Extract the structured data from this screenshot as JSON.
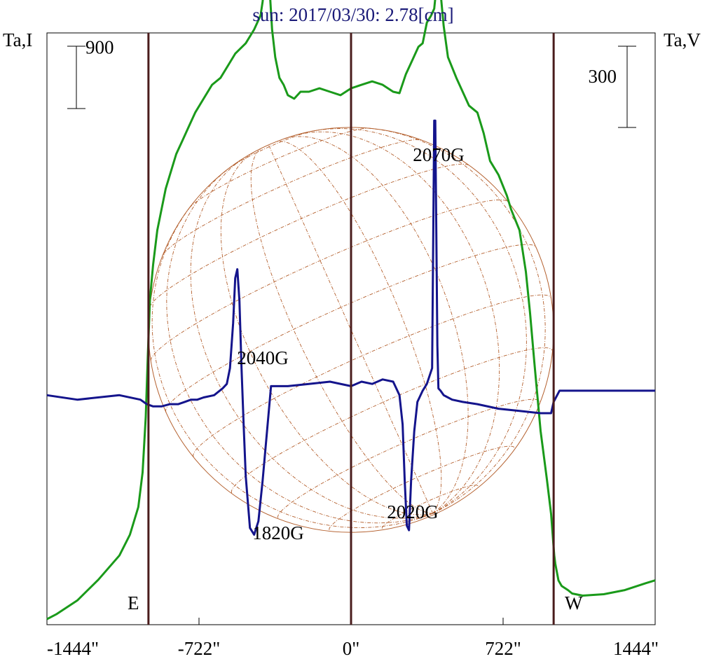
{
  "chart_data": {
    "type": "line",
    "title": "sun: 2017/03/30: 2.78[cm]",
    "y_left_label": "Ta,I",
    "y_right_label": "Ta,V",
    "x_ticks": [
      -1444,
      -722,
      0,
      722,
      1444
    ],
    "x_tick_labels": [
      "-1444\"",
      "-722\"",
      "0\"",
      "722\"",
      "1444\""
    ],
    "xlim": [
      -1444,
      1444
    ],
    "scale_bars": {
      "left": {
        "value": "900",
        "series": "Ta,I"
      },
      "right": {
        "value": "300",
        "series": "Ta,V"
      }
    },
    "limb_markers": [
      {
        "x": -962,
        "label": "E"
      },
      {
        "x": 962,
        "label": "W"
      }
    ],
    "center_marker_x": 0,
    "solar_radius_arcsec": 962,
    "ylim_I": [
      0,
      8550
    ],
    "ylim_V": [
      -1040,
      1590
    ],
    "series": [
      {
        "name": "Ta,I",
        "color": "#1a9a1a",
        "axis": "left",
        "x": [
          -1444,
          -1400,
          -1300,
          -1200,
          -1100,
          -1050,
          -1010,
          -990,
          -975,
          -965,
          -955,
          -940,
          -920,
          -900,
          -880,
          -860,
          -830,
          -800,
          -770,
          -740,
          -700,
          -660,
          -620,
          -580,
          -550,
          -500,
          -460,
          -430,
          -420,
          -405,
          -395,
          -385,
          -375,
          -360,
          -340,
          -320,
          -300,
          -270,
          -240,
          -200,
          -150,
          -100,
          -50,
          0,
          50,
          100,
          150,
          200,
          230,
          260,
          290,
          320,
          340,
          360,
          380,
          395,
          405,
          410,
          420,
          440,
          460,
          500,
          560,
          600,
          630,
          660,
          700,
          740,
          760,
          800,
          830,
          850,
          870,
          900,
          930,
          950,
          960,
          965,
          970,
          975,
          985,
          1000,
          1030,
          1050,
          1100,
          1200,
          1300,
          1400,
          1444
        ],
        "y": [
          80,
          150,
          350,
          650,
          1000,
          1300,
          1700,
          2200,
          3000,
          3900,
          4700,
          5200,
          5700,
          6000,
          6300,
          6500,
          6800,
          7000,
          7200,
          7400,
          7600,
          7800,
          7900,
          8100,
          8250,
          8400,
          8600,
          8800,
          9000,
          9450,
          9420,
          9100,
          8600,
          8200,
          7900,
          7800,
          7650,
          7600,
          7700,
          7700,
          7750,
          7700,
          7650,
          7750,
          7800,
          7850,
          7800,
          7700,
          7680,
          7950,
          8150,
          8350,
          8400,
          8700,
          8800,
          8900,
          9200,
          9700,
          9300,
          8650,
          8200,
          7900,
          7500,
          7400,
          7100,
          6700,
          6500,
          6200,
          6000,
          5700,
          5100,
          4500,
          3800,
          2800,
          2100,
          1600,
          1200,
          1000,
          880,
          800,
          640,
          560,
          500,
          450,
          420,
          440,
          500,
          600,
          640
        ]
      },
      {
        "name": "Ta,V",
        "color": "#14148c",
        "axis": "right",
        "x": [
          -1444,
          -1300,
          -1100,
          -1000,
          -970,
          -940,
          -900,
          -860,
          -820,
          -790,
          -760,
          -730,
          -700,
          -650,
          -610,
          -590,
          -575,
          -560,
          -550,
          -540,
          -530,
          -520,
          -510,
          -500,
          -480,
          -460,
          -440,
          -420,
          -380,
          -300,
          -200,
          -100,
          0,
          50,
          100,
          150,
          200,
          230,
          245,
          255,
          265,
          275,
          285,
          300,
          315,
          340,
          360,
          385,
          395,
          400,
          405,
          410,
          415,
          425,
          440,
          480,
          530,
          600,
          700,
          800,
          900,
          950,
          962,
          990,
          1050,
          1200,
          1444
        ],
        "y": [
          -20,
          -40,
          -20,
          -40,
          -60,
          -70,
          -70,
          -60,
          -60,
          -50,
          -40,
          -40,
          -30,
          -20,
          10,
          30,
          100,
          300,
          500,
          540,
          400,
          100,
          -150,
          -380,
          -610,
          -640,
          -580,
          -400,
          20,
          20,
          30,
          40,
          20,
          40,
          30,
          50,
          40,
          -20,
          -150,
          -400,
          -600,
          -620,
          -400,
          -180,
          -50,
          0,
          30,
          100,
          1200,
          1200,
          700,
          200,
          10,
          0,
          -20,
          -40,
          -50,
          -60,
          -80,
          -90,
          -100,
          -100,
          -50,
          0,
          0,
          0,
          0
        ]
      }
    ],
    "annotations": [
      {
        "text": "2070G",
        "x": 390,
        "y_V": 1600
      },
      {
        "text": "2040G",
        "x": -430,
        "y_V": 660
      },
      {
        "text": "1820G",
        "x": -340,
        "y_V": -820
      },
      {
        "text": "2020G",
        "x": 300,
        "y_V": -650
      }
    ]
  }
}
